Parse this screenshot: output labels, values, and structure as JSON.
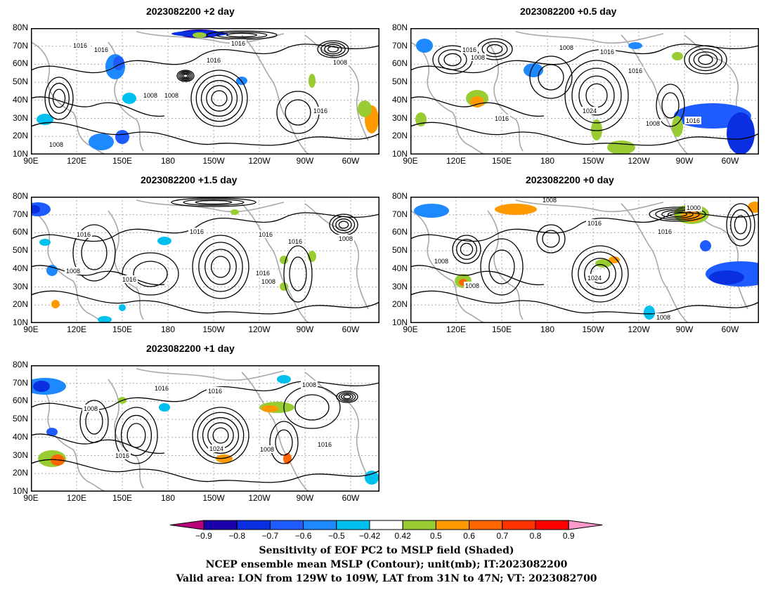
{
  "panels": [
    {
      "id": "p1",
      "title": "2023082200  +2 day",
      "pressure_labels": [
        "1016",
        "1016",
        "1016",
        "1016",
        "1008",
        "1008",
        "1008",
        "1016",
        "1008"
      ]
    },
    {
      "id": "p2",
      "title": "2023082200  +0.5  day",
      "pressure_labels": [
        "1016",
        "1008",
        "1008",
        "1016",
        "1016",
        "1024",
        "1016",
        "1008",
        "1016"
      ]
    },
    {
      "id": "p3",
      "title": "2023082200  +1.5  day",
      "pressure_labels": [
        "1016",
        "1016",
        "1016",
        "1016",
        "1008",
        "1008",
        "1016",
        "1016",
        "1008"
      ]
    },
    {
      "id": "p4",
      "title": "2023082200  +0  day",
      "pressure_labels": [
        "1008",
        "1000",
        "1016",
        "1016",
        "1008",
        "1008",
        "1024",
        "1008"
      ]
    },
    {
      "id": "p5",
      "title": "2023082200  +1 day",
      "pressure_labels": [
        "1016",
        "1016",
        "1008",
        "1008",
        "1024",
        "1008",
        "1016",
        "1016"
      ]
    }
  ],
  "axes": {
    "lat_ticks": [
      "80N",
      "70N",
      "60N",
      "50N",
      "40N",
      "30N",
      "20N",
      "10N"
    ],
    "lon_ticks": [
      "90E",
      "120E",
      "150E",
      "180",
      "150W",
      "120W",
      "90W",
      "60W"
    ]
  },
  "colorbar": {
    "labels": [
      "−0.9",
      "−0.8",
      "−0.7",
      "−0.6",
      "−0.5",
      "−0.42",
      "0.42",
      "0.5",
      "0.6",
      "0.7",
      "0.8",
      "0.9"
    ],
    "colors": [
      "#1a00a8",
      "#0a2fe0",
      "#1e5cff",
      "#1e88ff",
      "#00c0f0",
      "#ffffff",
      "#99cc33",
      "#ff9900",
      "#ff6600",
      "#ff3300",
      "#ff0000"
    ],
    "low_end_color": "#b8007a",
    "high_end_color": "#ff99cc"
  },
  "caption": {
    "line1": "Sensitivity of EOF PC2 to MSLP field (Shaded)",
    "line2": "NCEP ensemble mean MSLP (Contour); unit(mb); IT:2023082200",
    "line3": "Valid area: LON from 129W to 109W, LAT from 31N to 47N; VT: 2023082700"
  }
}
